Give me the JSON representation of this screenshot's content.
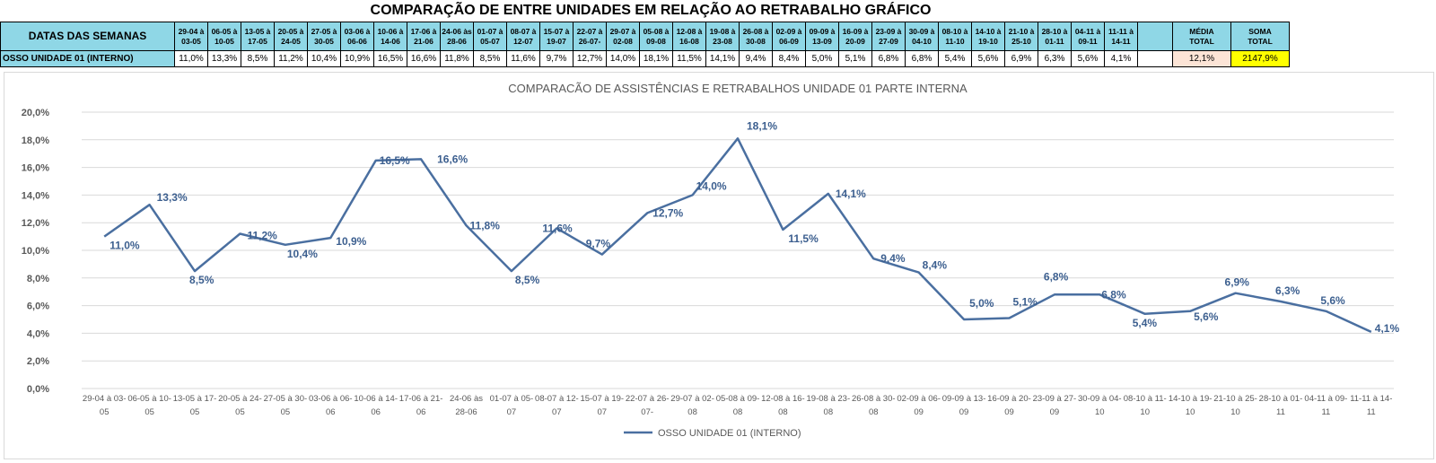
{
  "header": {
    "title": "COMPARAÇÃO DE ENTRE UNIDADES EM RELAÇÃO AO RETRABALHO GRÁFICO",
    "row1_label": "DATAS DAS SEMANAS",
    "row2_label": "OSSO UNIDADE 01 (INTERNO)",
    "media_label_1": "MÉDIA",
    "media_label_2": "TOTAL",
    "media_value": "12,1%",
    "soma_label_1": "SOMA",
    "soma_label_2": "TOTAL",
    "soma_value": "2147,9%",
    "week_headers": [
      [
        "29-04 à",
        "03-05"
      ],
      [
        "06-05 à",
        "10-05"
      ],
      [
        "13-05 à",
        "17-05"
      ],
      [
        "20-05 à",
        "24-05"
      ],
      [
        "27-05 à",
        "30-05"
      ],
      [
        "03-06 à",
        "06-06"
      ],
      [
        "10-06 à",
        "14-06"
      ],
      [
        "17-06 à",
        "21-06"
      ],
      [
        "24-06 às",
        "28-06"
      ],
      [
        "01-07 à",
        "05-07"
      ],
      [
        "08-07 à",
        "12-07"
      ],
      [
        "15-07 à",
        "19-07"
      ],
      [
        "22-07 à",
        "26-07-"
      ],
      [
        "29-07 à",
        "02-08"
      ],
      [
        "05-08 à",
        "09-08"
      ],
      [
        "12-08 à",
        "16-08"
      ],
      [
        "19-08 à",
        "23-08"
      ],
      [
        "26-08 à",
        "30-08"
      ],
      [
        "02-09 à",
        "06-09"
      ],
      [
        "09-09 à",
        "13-09"
      ],
      [
        "16-09 à",
        "20-09"
      ],
      [
        "23-09 à",
        "27-09"
      ],
      [
        "30-09 à",
        "04-10"
      ],
      [
        "08-10 à",
        "11-10"
      ],
      [
        "14-10 à",
        "19-10"
      ],
      [
        "21-10 à",
        "25-10"
      ],
      [
        "28-10 à",
        "01-11"
      ],
      [
        "04-11 à",
        "09-11"
      ],
      [
        "11-11 à",
        "14-11"
      ]
    ],
    "week_values": [
      "11,0%",
      "13,3%",
      "8,5%",
      "11,2%",
      "10,4%",
      "10,9%",
      "16,5%",
      "16,6%",
      "11,8%",
      "8,5%",
      "11,6%",
      "9,7%",
      "12,7%",
      "14,0%",
      "18,1%",
      "11,5%",
      "14,1%",
      "9,4%",
      "8,4%",
      "5,0%",
      "5,1%",
      "6,8%",
      "6,8%",
      "5,4%",
      "5,6%",
      "6,9%",
      "6,3%",
      "5,6%",
      "4,1%"
    ]
  },
  "chart_data": {
    "type": "line",
    "title": "COMPARACÃO DE ASSISTÊNCIAS E RETRABALHOS UNIDADE 01 PARTE INTERNA",
    "categories": [
      [
        "29-04 à 03-",
        "05"
      ],
      [
        "06-05 à 10-",
        "05"
      ],
      [
        "13-05 à 17-",
        "05"
      ],
      [
        "20-05 à 24-",
        "05"
      ],
      [
        "27-05 à 30-",
        "05"
      ],
      [
        "03-06 à 06-",
        "06"
      ],
      [
        "10-06 à 14-",
        "06"
      ],
      [
        "17-06 à 21-",
        "06"
      ],
      [
        "24-06 às",
        "28-06"
      ],
      [
        "01-07 à 05-",
        "07"
      ],
      [
        "08-07 à 12-",
        "07"
      ],
      [
        "15-07 à 19-",
        "07"
      ],
      [
        "22-07 à 26-",
        "07-"
      ],
      [
        "29-07 à 02-",
        "08"
      ],
      [
        "05-08 à 09-",
        "08"
      ],
      [
        "12-08 à 16-",
        "08"
      ],
      [
        "19-08 à 23-",
        "08"
      ],
      [
        "26-08 à 30-",
        "08"
      ],
      [
        "02-09 à 06-",
        "09"
      ],
      [
        "09-09 à 13-",
        "09"
      ],
      [
        "16-09 à 20-",
        "09"
      ],
      [
        "23-09 à 27-",
        "09"
      ],
      [
        "30-09 à 04-",
        "10"
      ],
      [
        "08-10 à 11-",
        "10"
      ],
      [
        "14-10 à 19-",
        "10"
      ],
      [
        "21-10 à 25-",
        "10"
      ],
      [
        "28-10 à 01-",
        "11"
      ],
      [
        "04-11 à 09-",
        "11"
      ],
      [
        "11-11 à 14-",
        "11"
      ]
    ],
    "series": [
      {
        "name": "OSSO UNIDADE 01 (INTERNO)",
        "values": [
          11.0,
          13.3,
          8.5,
          11.2,
          10.4,
          10.9,
          16.5,
          16.6,
          11.8,
          8.5,
          11.6,
          9.7,
          12.7,
          14.0,
          18.1,
          11.5,
          14.1,
          9.4,
          8.4,
          5.0,
          5.1,
          6.8,
          6.8,
          5.4,
          5.6,
          6.9,
          6.3,
          5.6,
          4.1
        ],
        "color": "#4a6fa0"
      }
    ],
    "data_labels": [
      "11,0%",
      "13,3%",
      "8,5%",
      "11,2%",
      "10,4%",
      "10,9%",
      "16,5%",
      "16,6%",
      "11,8%",
      "8,5%",
      "11,6%",
      "9,7%",
      "12,7%",
      "14,0%",
      "18,1%",
      "11,5%",
      "14,1%",
      "9,4%",
      "8,4%",
      "5,0%",
      "5,1%",
      "6,8%",
      "6,8%",
      "5,4%",
      "5,6%",
      "6,9%",
      "6,3%",
      "5,6%",
      "4,1%"
    ],
    "yticks": [
      "0,0%",
      "2,0%",
      "4,0%",
      "6,0%",
      "8,0%",
      "10,0%",
      "12,0%",
      "14,0%",
      "16,0%",
      "18,0%",
      "20,0%"
    ],
    "ylim": [
      0,
      20
    ],
    "grid": true,
    "legend_position": "bottom",
    "legend_label": "OSSO UNIDADE 01 (INTERNO)",
    "label_color": "#3c5f8f",
    "axis_text_color": "#595959",
    "grid_color": "#d9d9d9"
  }
}
